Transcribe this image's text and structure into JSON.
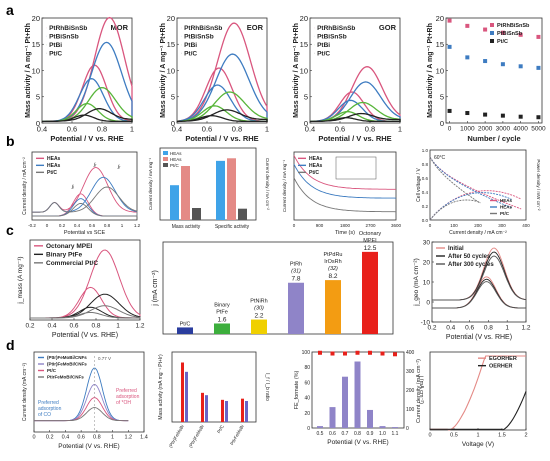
{
  "panel_labels": [
    "a",
    "b",
    "c",
    "d"
  ],
  "colors": {
    "pink": "#d9567e",
    "blue": "#3e7cc1",
    "green": "#58b53a",
    "black": "#222222",
    "red": "#e8201a",
    "orange": "#f39c12",
    "purple": "#8f84c8",
    "gray": "#777777",
    "lightblue": "#3fa3e8",
    "salmon": "#e48a86",
    "darkgray": "#555555"
  },
  "chart_data": [
    {
      "id": "a1",
      "type": "line",
      "tag": "MOR",
      "legend": [
        "PtRhBiSnSb",
        "PtBiSnSb",
        "PtBi",
        "Pt/C"
      ],
      "ylabel": "Mass activity / A mg⁻¹ Pt+Rh",
      "xlabel": "Potential / V vs. RHE",
      "xlim": [
        0.4,
        1.0
      ],
      "ylim": [
        0,
        20
      ],
      "xticks": [
        0.4,
        0.6,
        0.8,
        1.0
      ],
      "yticks": [
        0,
        5,
        10,
        15,
        20
      ],
      "series": [
        {
          "name": "PtRhBiSnSb",
          "color": "#d9567e",
          "peak_x": 0.85,
          "peak_y": 19.5,
          "width": 0.1
        },
        {
          "name": "PtBiSnSb",
          "color": "#3e7cc1",
          "peak_x": 0.83,
          "peak_y": 14.8,
          "width": 0.1
        },
        {
          "name": "PtBi",
          "color": "#58b53a",
          "peak_x": 0.8,
          "peak_y": 6.2,
          "width": 0.09
        },
        {
          "name": "Pt/C",
          "color": "#222222",
          "peak_x": 0.78,
          "peak_y": 2.2,
          "width": 0.08
        }
      ]
    },
    {
      "id": "a2",
      "type": "line",
      "tag": "EOR",
      "legend": [
        "PtRhBiSnSb",
        "PtBiSnSb",
        "PtBi",
        "Pt/C"
      ],
      "ylabel": "Mass activity / A mg⁻¹ Pt+Rh",
      "xlabel": "Potential / V vs. RHE",
      "xlim": [
        0.4,
        1.0
      ],
      "ylim": [
        0,
        20
      ],
      "xticks": [
        0.4,
        0.6,
        0.8,
        1.0
      ],
      "yticks": [
        0,
        5,
        10,
        15,
        20
      ],
      "series": [
        {
          "name": "PtRhBiSnSb",
          "color": "#d9567e",
          "peak_x": 0.78,
          "peak_y": 18.5,
          "width": 0.11
        },
        {
          "name": "PtBiSnSb",
          "color": "#3e7cc1",
          "peak_x": 0.77,
          "peak_y": 12.6,
          "width": 0.11
        },
        {
          "name": "PtBi",
          "color": "#58b53a",
          "peak_x": 0.75,
          "peak_y": 5.4,
          "width": 0.1
        },
        {
          "name": "Pt/C",
          "color": "#222222",
          "peak_x": 0.73,
          "peak_y": 2.0,
          "width": 0.09
        }
      ]
    },
    {
      "id": "a3",
      "type": "line",
      "tag": "GOR",
      "legend": [
        "PtRhBiSnSb",
        "PtBiSnSb",
        "PtBi",
        "Pt/C"
      ],
      "ylabel": "Mass activity / A mg⁻¹ Pt+Rh",
      "xlabel": "Potential / V vs. RHE",
      "xlim": [
        0.4,
        1.0
      ],
      "ylim": [
        0,
        20
      ],
      "xticks": [
        0.4,
        0.6,
        0.8,
        1.0
      ],
      "yticks": [
        0,
        5,
        10,
        15,
        20
      ],
      "series": [
        {
          "name": "PtRhBiSnSb",
          "color": "#d9567e",
          "peak_x": 0.78,
          "peak_y": 10.2,
          "width": 0.1
        },
        {
          "name": "PtBiSnSb",
          "color": "#3e7cc1",
          "peak_x": 0.77,
          "peak_y": 7.3,
          "width": 0.1
        },
        {
          "name": "PtBi",
          "color": "#58b53a",
          "peak_x": 0.75,
          "peak_y": 3.4,
          "width": 0.09
        },
        {
          "name": "Pt/C",
          "color": "#222222",
          "peak_x": 0.74,
          "peak_y": 1.3,
          "width": 0.08
        }
      ]
    },
    {
      "id": "a4",
      "type": "scatter",
      "legend": [
        "PtRhBiSnSb",
        "PtBiSnSb",
        "Pt/C"
      ],
      "ylabel": "Mass activity / A mg⁻¹ Pt+Rh",
      "xlabel": "Number / cycle",
      "xlim": [
        -200,
        5200
      ],
      "ylim": [
        0,
        20
      ],
      "xticks": [
        0,
        1000,
        2000,
        3000,
        4000,
        5000
      ],
      "yticks": [
        0,
        5,
        10,
        15,
        20
      ],
      "x": [
        0,
        1000,
        2000,
        3000,
        4000,
        5000
      ],
      "series": [
        {
          "name": "PtRhBiSnSb",
          "color": "#d9567e",
          "values": [
            19.5,
            18.5,
            17.8,
            17.2,
            16.8,
            16.4
          ]
        },
        {
          "name": "PtBiSnSb",
          "color": "#3e7cc1",
          "values": [
            14.5,
            12.5,
            11.8,
            11.2,
            10.8,
            10.5
          ]
        },
        {
          "name": "Pt/C",
          "color": "#222222",
          "values": [
            2.3,
            1.9,
            1.6,
            1.4,
            1.2,
            1.1
          ]
        }
      ]
    },
    {
      "id": "b1",
      "type": "line",
      "legend": [
        "HEAs",
        "HEAs",
        "Pt/C"
      ],
      "ylabel": "Current density / mA cm⁻²",
      "xlabel": "Potential vs SCE",
      "xlim": [
        -0.2,
        1.2
      ],
      "xticks": [
        -0.2,
        0.0,
        0.2,
        0.4,
        0.6,
        0.8,
        1.0,
        1.2
      ],
      "annotations": [
        "jᵢ",
        "jᵣ",
        "jᵣ"
      ]
    },
    {
      "id": "b2",
      "type": "bar",
      "legend": [
        "HEAs",
        "HEAs",
        "Pt/C"
      ],
      "ylabel": "Current density / mA mg⁻¹",
      "ylabel2": "Current density / mA cm⁻²",
      "categories": [
        "Mass activity",
        "Specific activity"
      ],
      "series": [
        {
          "name": "HEAs",
          "color": "#3fa3e8",
          "values": [
            580,
            1.15
          ]
        },
        {
          "name": "HEAs",
          "color": "#e48a86",
          "values": [
            900,
            1.2
          ]
        },
        {
          "name": "Pt/C",
          "color": "#555555",
          "values": [
            200,
            0.22
          ]
        }
      ]
    },
    {
      "id": "b3",
      "type": "line",
      "legend": [
        "HEAs",
        "HEAs",
        "Pt/C"
      ],
      "ylabel": "Current density / mA mg⁻¹",
      "xlabel": "Time (s)",
      "xlim": [
        0,
        3600
      ],
      "xticks": [
        0,
        900,
        1800,
        2700,
        3600
      ]
    },
    {
      "id": "b4",
      "type": "line",
      "tag": "60°C",
      "legend": [
        "HEAs",
        "HEAs",
        "Pt/C"
      ],
      "ylabel": "Cell voltage / V",
      "ylabel2": "Power density / mW cm⁻²",
      "xlabel": "Current density / mA cm⁻²",
      "xlim": [
        0,
        400
      ],
      "xticks": [
        0,
        100,
        200,
        300,
        400
      ],
      "ylim": [
        0.0,
        1.0
      ],
      "yticks": [
        0.0,
        0.2,
        0.4,
        0.6,
        0.8,
        1.0
      ]
    },
    {
      "id": "c1",
      "type": "line",
      "legend": [
        "Octonary MPEI",
        "Binary PtFe",
        "Commercial Pt/C"
      ],
      "ylabel": "j_mass (A mg⁻¹)",
      "xlabel": "Potential (V vs. RHE)",
      "xlim": [
        0.2,
        1.2
      ],
      "xticks": [
        0.2,
        0.4,
        0.6,
        0.8,
        1.0,
        1.2
      ]
    },
    {
      "id": "c2",
      "type": "bar",
      "ylabel": "j (mA cm⁻²)",
      "categories": [
        "Pt/C",
        "Binary PtFe",
        "PtNiRh",
        "PtRh",
        "PtPdRu IrOsRh",
        "Octonary MPEI"
      ],
      "cat_labels": [
        [
          "Pt/C"
        ],
        [
          "Binary",
          "PtFe"
        ],
        [
          "PtNiRh",
          "(30)"
        ],
        [
          "PtRh",
          "(31)"
        ],
        [
          "PtPdRu",
          "IrOsRh",
          "(32)"
        ],
        [
          "Octonary",
          "MPEI"
        ]
      ],
      "values": [
        1.0,
        1.6,
        2.2,
        7.8,
        8.2,
        12.5
      ],
      "value_labels": [
        "",
        "1.6",
        "2.2",
        "7.8",
        "8.2",
        "12.5"
      ],
      "colors": [
        "#2a3d9e",
        "#3cae3c",
        "#f0d000",
        "#8f84c8",
        "#f39c12",
        "#e8201a"
      ]
    },
    {
      "id": "c3",
      "type": "line",
      "legend": [
        "Initial",
        "After 50 cycles",
        "After 300 cycles"
      ],
      "ylabel": "j_geo (mA cm⁻²)",
      "xlabel": "Potential (V vs. RHE)",
      "xlim": [
        0.2,
        1.2
      ],
      "xticks": [
        0.2,
        0.4,
        0.6,
        0.8,
        1.0,
        1.2
      ],
      "ylim": [
        -10,
        30
      ],
      "yticks": [
        -10,
        0,
        10,
        20,
        30
      ]
    },
    {
      "id": "d1",
      "type": "line",
      "legend": [
        "(PtIr)FeMoBi/CNFs",
        "(PtIr)FeMoBi/CNFs",
        "Pt/C",
        "PtIrFeMoBi/CNFs"
      ],
      "annotations": [
        "Preferred adsorption of CO",
        "Preferred adsorption of *OH",
        "0.77 V"
      ],
      "ylabel": "Current density (mA cm⁻²)",
      "xlabel": "Potential (V vs. RHE)",
      "xlim": [
        0.0,
        1.4
      ],
      "xticks": [
        0.0,
        0.2,
        0.4,
        0.6,
        0.8,
        1.0,
        1.2,
        1.4
      ]
    },
    {
      "id": "d2",
      "type": "bar",
      "ylabel": "Mass activity (mA mg⁻¹ Pt+Ir)",
      "ylabel2": "I_f / I_b ratio",
      "categories": [
        "(PtIr)FeMoBi",
        "(PtIr)FeMoBi",
        "Pt/C",
        "PtIrFeMoBi"
      ],
      "values": [
        5100,
        2500,
        1900,
        2000
      ],
      "values2": [
        4300,
        2300,
        1800,
        1800
      ]
    },
    {
      "id": "d3",
      "type": "bar",
      "ylabel": "FE_formate (%)",
      "ylabel2": "j (mA cm⁻²)",
      "xlabel": "Potential (V vs. RHE)",
      "categories": [
        "0.5",
        "0.6",
        "0.7",
        "0.8",
        "0.9",
        "1.0",
        "1.1"
      ],
      "values": [
        10,
        110,
        270,
        350,
        95,
        10,
        5
      ],
      "fe": [
        99,
        98,
        98,
        99,
        99,
        98,
        97
      ],
      "ylim": [
        0,
        400
      ],
      "yticks": [
        0,
        100,
        200,
        300,
        400
      ],
      "ylim2": [
        0,
        100
      ],
      "yticks2": [
        0,
        20,
        40,
        60,
        80,
        100
      ]
    },
    {
      "id": "d4",
      "type": "line",
      "legend": [
        "EGORHER",
        "OERHER"
      ],
      "ylabel": "Current density (mA cm⁻²)",
      "xlabel": "Voltage (V)",
      "xlim": [
        0.0,
        2.0
      ],
      "xticks": [
        0.0,
        0.5,
        1.0,
        1.5,
        2.0
      ]
    }
  ]
}
